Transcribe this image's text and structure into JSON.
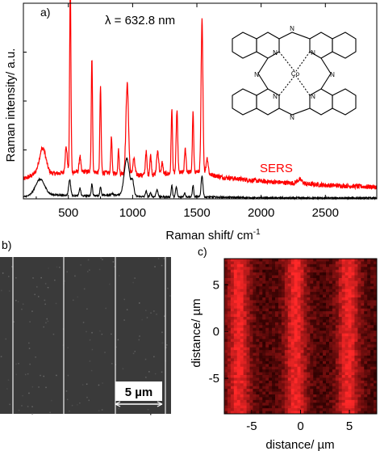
{
  "panels": {
    "a": "a)",
    "b": "b)",
    "c": "c)"
  },
  "chart_data": [
    {
      "panel": "a",
      "type": "line",
      "xlabel": "Raman shift/ cm",
      "xlabel_sup": "-1",
      "ylabel": "Raman intensity/ a.u.",
      "xlim": [
        150,
        2900
      ],
      "ylim": [
        0,
        1.0
      ],
      "xticks": [
        500,
        1000,
        1500,
        2000,
        2500,
        "3000"
      ],
      "xtick_labels": [
        "500",
        "1000",
        "1500",
        "2000",
        "2500"
      ],
      "annotation_lambda": "λ = 632.8 nm",
      "series_label": "SERS",
      "colors": {
        "sers": "#ff0000",
        "reference": "#000000",
        "axes": "#000000"
      },
      "series": [
        {
          "id": "sers",
          "baseline_points": [
            [
              150,
              0.1
            ],
            [
              250,
              0.13
            ],
            [
              400,
              0.13
            ],
            [
              600,
              0.14
            ],
            [
              900,
              0.13
            ],
            [
              1100,
              0.12
            ],
            [
              1300,
              0.13
            ],
            [
              1500,
              0.14
            ],
            [
              1700,
              0.11
            ],
            [
              2000,
              0.09
            ],
            [
              2500,
              0.07
            ],
            [
              2900,
              0.06
            ]
          ],
          "peaks": [
            [
              300,
              0.13,
              25
            ],
            [
              483,
              0.13,
              8
            ],
            [
              515,
              0.98,
              5
            ],
            [
              590,
              0.08,
              6
            ],
            [
              683,
              0.58,
              5
            ],
            [
              750,
              0.43,
              5
            ],
            [
              835,
              0.18,
              5
            ],
            [
              890,
              0.12,
              5
            ],
            [
              958,
              0.46,
              10
            ],
            [
              1010,
              0.08,
              8
            ],
            [
              1105,
              0.12,
              6
            ],
            [
              1140,
              0.1,
              6
            ],
            [
              1195,
              0.12,
              8
            ],
            [
              1230,
              0.06,
              6
            ],
            [
              1305,
              0.33,
              5
            ],
            [
              1345,
              0.32,
              6
            ],
            [
              1410,
              0.12,
              6
            ],
            [
              1470,
              0.3,
              5
            ],
            [
              1540,
              0.78,
              7
            ],
            [
              1580,
              0.08,
              8
            ],
            [
              2300,
              0.02,
              20
            ]
          ]
        },
        {
          "id": "reference",
          "baseline_points": [
            [
              150,
              0.01
            ],
            [
              250,
              0.02
            ],
            [
              400,
              0.02
            ],
            [
              600,
              0.015
            ],
            [
              900,
              0.02
            ],
            [
              1100,
              0.01
            ],
            [
              1500,
              0.01
            ],
            [
              2000,
              0.005
            ],
            [
              2900,
              0.004
            ]
          ],
          "peaks": [
            [
              280,
              0.08,
              35
            ],
            [
              510,
              0.08,
              8
            ],
            [
              590,
              0.04,
              6
            ],
            [
              683,
              0.06,
              5
            ],
            [
              750,
              0.045,
              5
            ],
            [
              840,
              0.01,
              6
            ],
            [
              955,
              0.19,
              20
            ],
            [
              1000,
              0.07,
              10
            ],
            [
              1105,
              0.03,
              6
            ],
            [
              1140,
              0.02,
              6
            ],
            [
              1190,
              0.035,
              8
            ],
            [
              1305,
              0.06,
              5
            ],
            [
              1340,
              0.05,
              6
            ],
            [
              1405,
              0.02,
              6
            ],
            [
              1470,
              0.06,
              5
            ],
            [
              1540,
              0.11,
              7
            ]
          ]
        }
      ],
      "inset_molecule": {
        "metal": "Co",
        "n_label": "N",
        "nitrogens": 8
      }
    },
    {
      "panel": "b",
      "type": "image",
      "content": "SEM micrograph",
      "scale_bar": "5 µm",
      "colors": {
        "background": "#3a3a3a",
        "stripes": "#d8d8d8"
      },
      "stripes": 4
    },
    {
      "panel": "c",
      "type": "heatmap",
      "xlabel": "distance/ µm",
      "ylabel": "distance/ µm",
      "xlim": [
        -7.8,
        7.8
      ],
      "ylim": [
        -8.8,
        7.8
      ],
      "xtick_labels": [
        "-5",
        "0",
        "5"
      ],
      "ytick_labels": [
        "5",
        "0",
        "-5"
      ],
      "xticks": [
        -5,
        0,
        5
      ],
      "yticks": [
        5,
        0,
        -5
      ],
      "colors": {
        "low": "#2a0000",
        "high": "#ff3030"
      },
      "bright_bands_x": [
        -6.3,
        -0.5,
        4.9
      ],
      "band_width": 1.6
    }
  ]
}
